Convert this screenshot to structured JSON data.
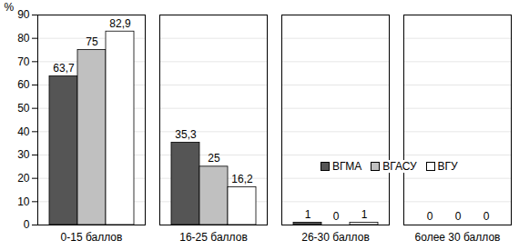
{
  "chart_data": {
    "type": "bar",
    "y_label": "%",
    "categories": [
      "0-15 баллов",
      "16-25 баллов",
      "26-30 баллов",
      "6олее 30 баллов"
    ],
    "series": [
      {
        "name": "ВГМА",
        "color": "#555555",
        "values": [
          63.7,
          35.3,
          1,
          0
        ],
        "value_labels": [
          "63,7",
          "35,3",
          "1",
          "0"
        ]
      },
      {
        "name": "ВГАСУ",
        "color": "#c0c0c0",
        "values": [
          75,
          25,
          0,
          0
        ]
      },
      {
        "name": "ВГУ",
        "color": "#ffffff",
        "values": [
          82.9,
          16.2,
          1,
          0
        ],
        "value_labels": [
          "82,9",
          "16,2",
          "1",
          "0"
        ]
      }
    ],
    "ylim": [
      0,
      90
    ],
    "yticks": [
      0,
      10,
      20,
      30,
      40,
      50,
      60,
      70,
      80,
      90
    ],
    "grid": true,
    "legend": "right",
    "data_labels": true
  }
}
